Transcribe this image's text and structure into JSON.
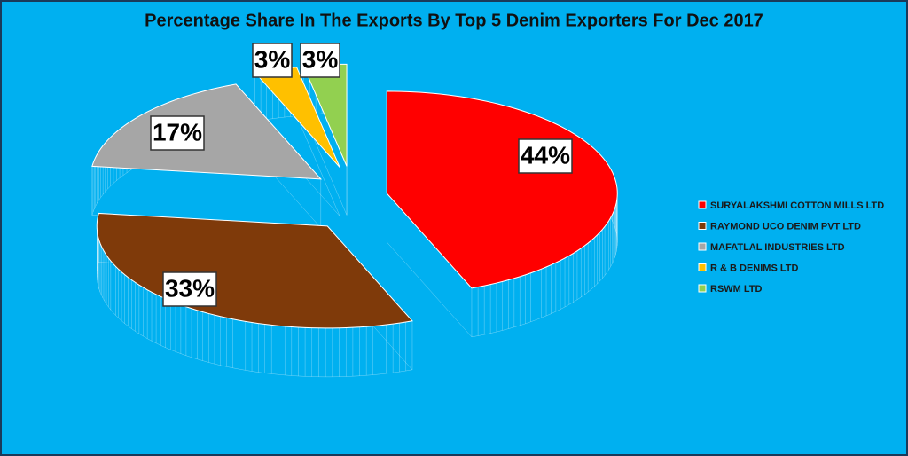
{
  "chart_data": {
    "type": "pie",
    "title": "Percentage Share In The Exports By Top 5 Denim Exporters For Dec 2017",
    "categories": [
      "SURYALAKSHMI COTTON MILLS LTD",
      "RAYMOND UCO DENIM PVT LTD",
      "MAFATLAL INDUSTRIES LTD",
      "R & B DENIMS LTD",
      "RSWM LTD"
    ],
    "values": [
      44,
      33,
      17,
      3,
      3
    ],
    "value_labels": [
      "44%",
      "33%",
      "17%",
      "3%",
      "3%"
    ],
    "colors": [
      "#ff0000",
      "#7f3a0a",
      "#a6a6a6",
      "#ffc000",
      "#92d050"
    ],
    "side_colors": [
      "#6e0000",
      "#3a1a04",
      "#404040",
      "#6b5000",
      "#3b5a20"
    ],
    "legend": "right"
  }
}
